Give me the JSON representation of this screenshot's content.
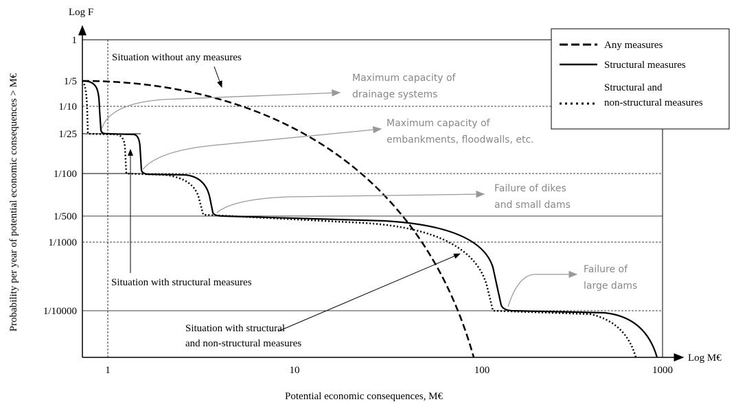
{
  "axes": {
    "y_label": "Log F",
    "x_label": "Log M€",
    "y_title": "Probability per year of potential economic consequences > M€",
    "x_title": "Potential economic consequences, M€"
  },
  "yticks": [
    "1",
    "1/5",
    "1/10",
    "1/25",
    "1/100",
    "1/500",
    "1/1000",
    "1/10000"
  ],
  "xticks": [
    "1",
    "10",
    "100",
    "1000"
  ],
  "legend": [
    "Any measures",
    "Structural measures",
    [
      "Structural and",
      "non-structural measures"
    ]
  ],
  "annotations": {
    "without": "Situation without any measures",
    "structural": "Situation with structural measures",
    "nonstructural": [
      "Situation with structural",
      "and non-structural measures"
    ],
    "drainage": [
      "Maximum capacity of",
      "drainage systems"
    ],
    "embankments": [
      "Maximum capacity of",
      "embankments, floodwalls, etc."
    ],
    "dikes": [
      "Failure of  dikes",
      "and small dams"
    ],
    "large": [
      "Failure of",
      "large dams"
    ]
  }
}
